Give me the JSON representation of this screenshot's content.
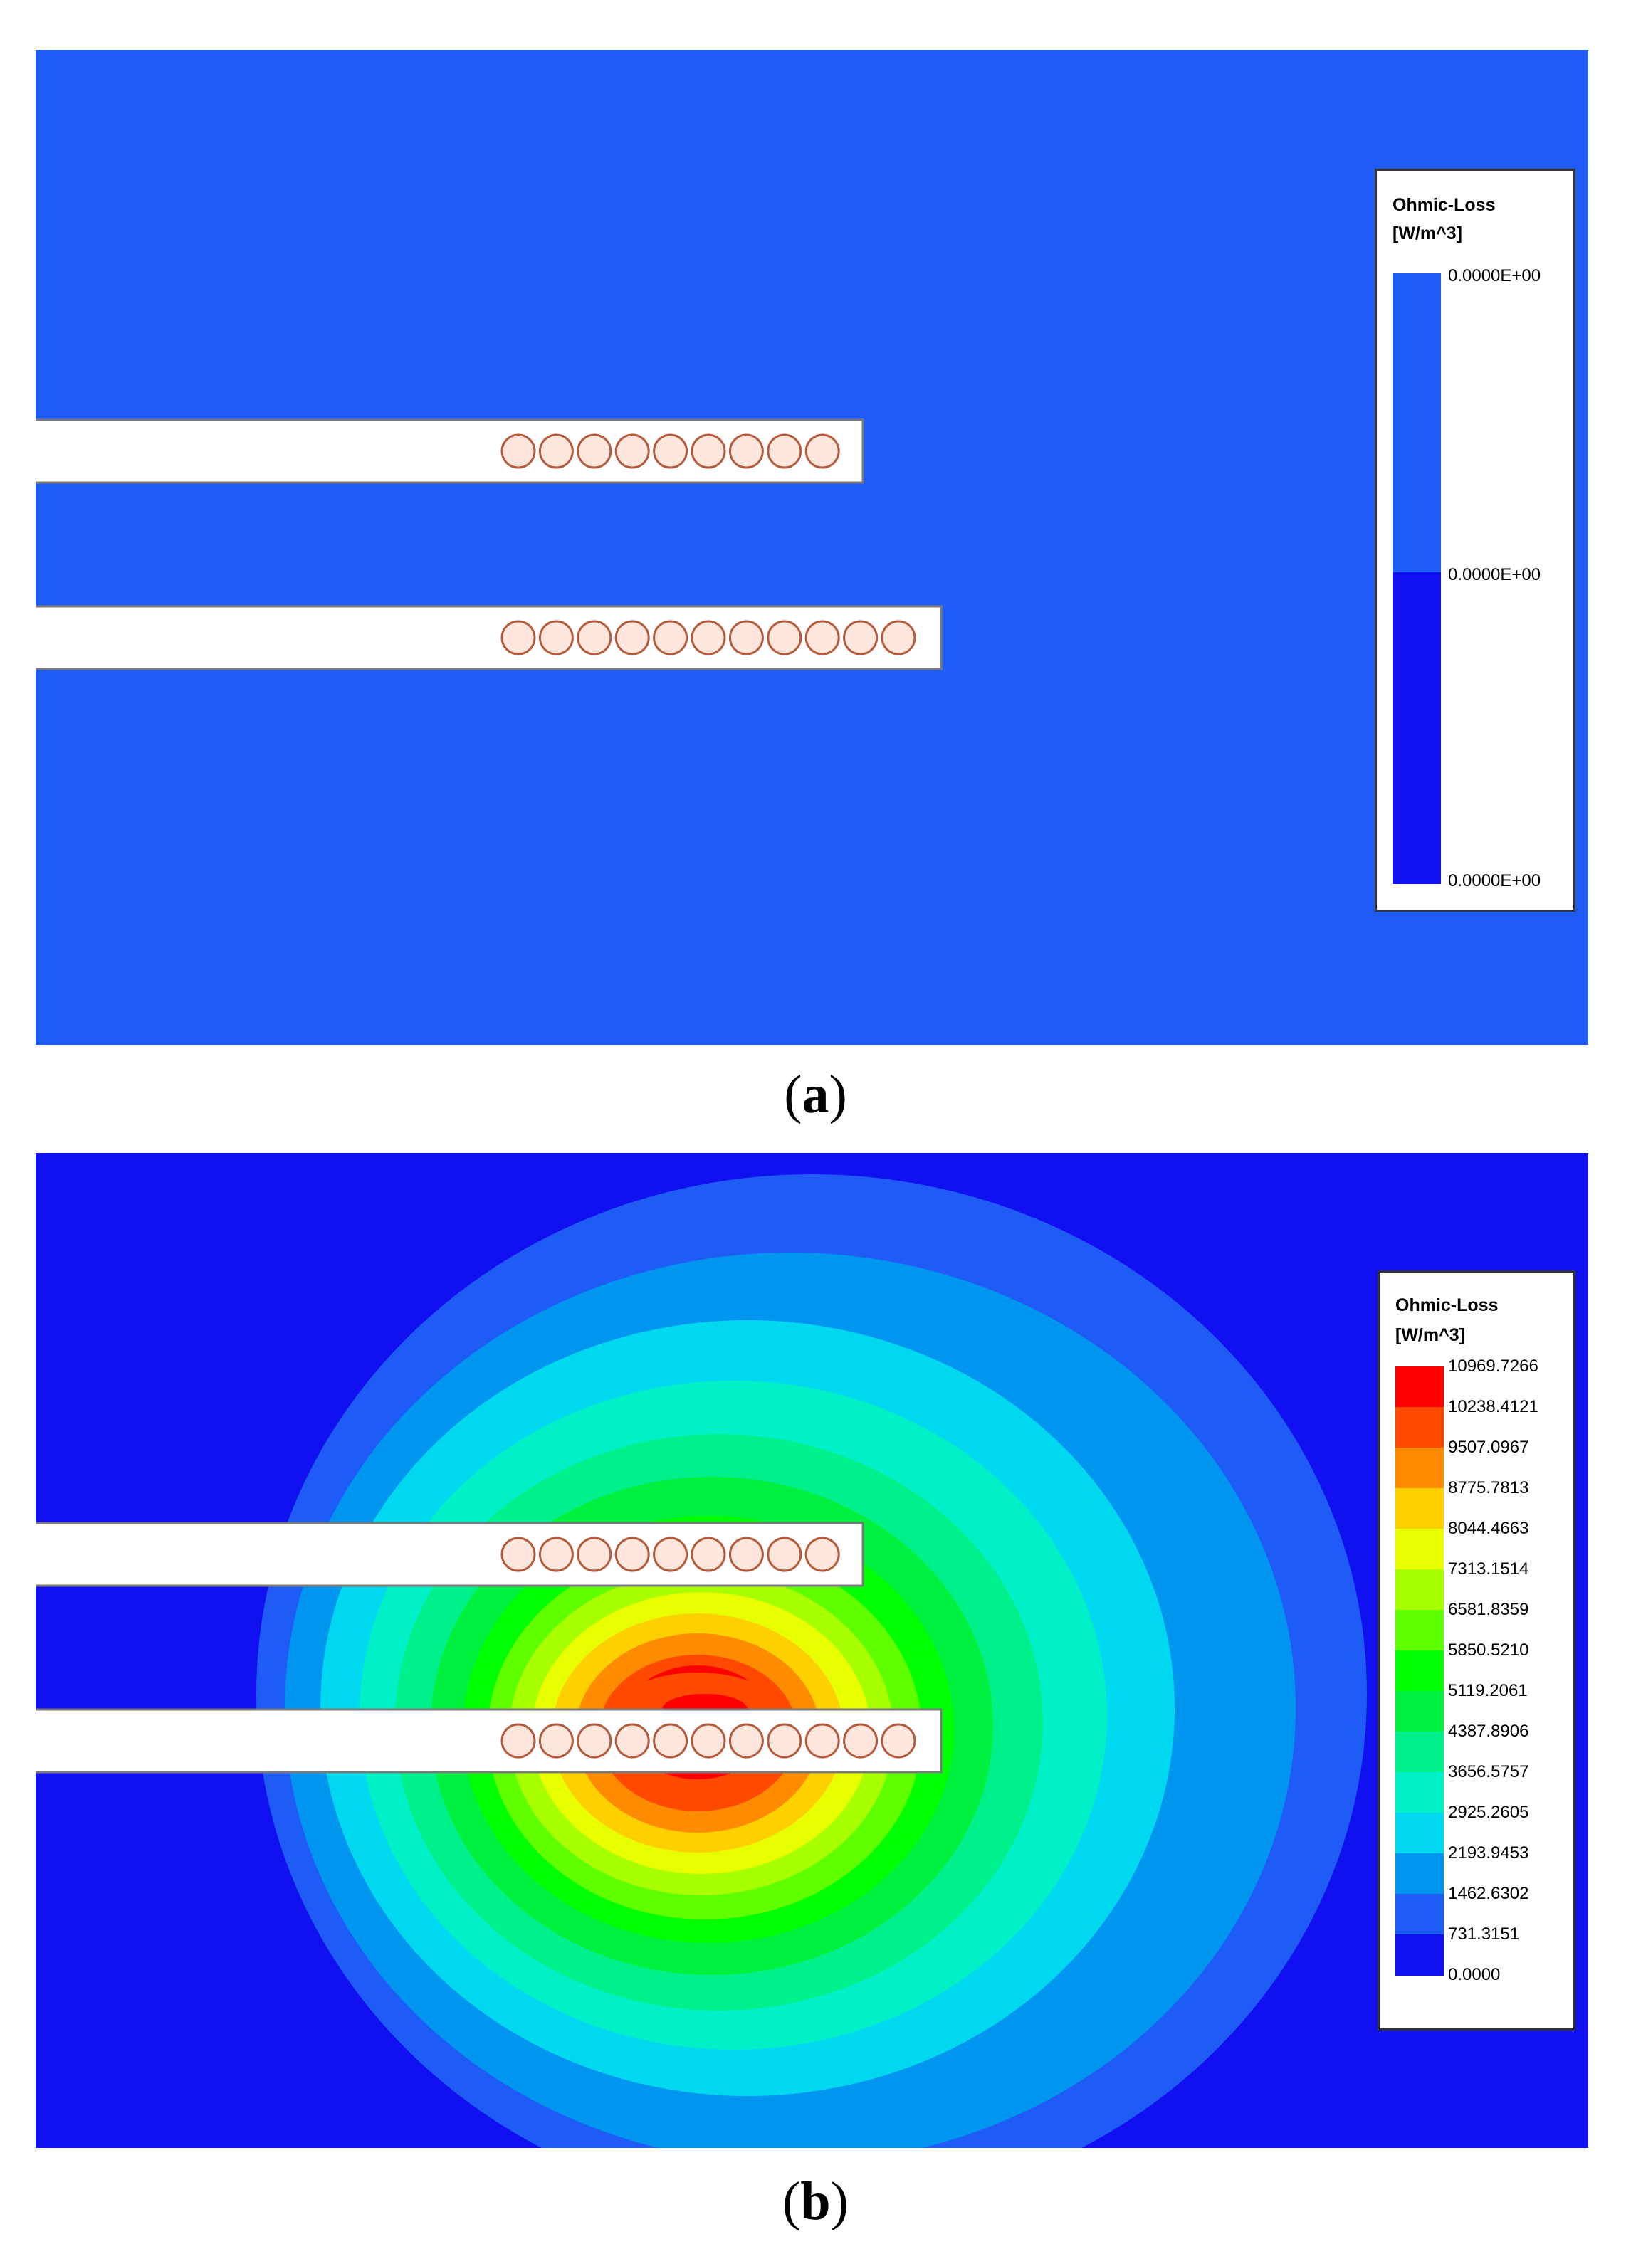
{
  "panels": [
    {
      "caption_letter": "a",
      "legend": {
        "title": "Ohmic-Loss",
        "unit": "[W/m^3]",
        "labels": [
          "0.0000E+00",
          "0.0000E+00",
          "0.0000E+00"
        ],
        "colors": [
          "#1f5cf5",
          "#1010f0"
        ]
      },
      "coil_rows": [
        9,
        11
      ]
    },
    {
      "caption_letter": "b",
      "legend": {
        "title": "Ohmic-Loss",
        "unit": "[W/m^3]",
        "labels": [
          "10969.7266",
          "10238.4121",
          "9507.0967",
          "8775.7813",
          "8044.4663",
          "7313.1514",
          "6581.8359",
          "5850.5210",
          "5119.2061",
          "4387.8906",
          "3656.5757",
          "2925.2605",
          "2193.9453",
          "1462.6302",
          "731.3151",
          "0.0000"
        ],
        "colors": [
          "#ff0000",
          "#ff4a00",
          "#ff8c00",
          "#ffd000",
          "#e8ff00",
          "#a8ff00",
          "#60ff00",
          "#00ff00",
          "#00f040",
          "#00f08c",
          "#00f0c8",
          "#00d8f0",
          "#0096f0",
          "#1f5cf5",
          "#1010f0"
        ]
      },
      "coil_rows": [
        9,
        11
      ]
    }
  ]
}
